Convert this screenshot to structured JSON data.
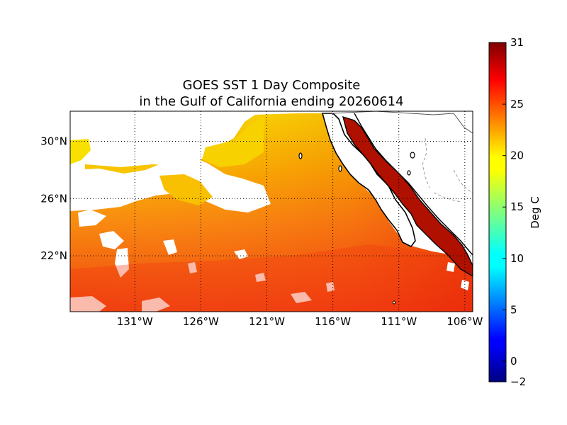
{
  "map": {
    "title_line1": "GOES SST 1 Day Composite",
    "title_line2": "in the Gulf of California ending 20260614",
    "lon_ticks": [
      {
        "lon": -131,
        "label": "131°W"
      },
      {
        "lon": -126,
        "label": "126°W"
      },
      {
        "lon": -121,
        "label": "121°W"
      },
      {
        "lon": -116,
        "label": "116°W"
      },
      {
        "lon": -111,
        "label": "111°W"
      },
      {
        "lon": -106,
        "label": "106°W"
      }
    ],
    "lat_ticks": [
      {
        "lat": 30,
        "label": "30°N"
      },
      {
        "lat": 26,
        "label": "26°N"
      },
      {
        "lat": 22,
        "label": "22°N"
      }
    ],
    "extent": {
      "lon_min": -135.9,
      "lon_max": -105.4,
      "lat_min": 18.1,
      "lat_max": 32.1
    },
    "grid": true
  },
  "colorbar": {
    "label": "Deg C",
    "min": -2,
    "max": 31,
    "ticks": [
      {
        "value": 31,
        "label": "31"
      },
      {
        "value": 25,
        "label": "25"
      },
      {
        "value": 20,
        "label": "20"
      },
      {
        "value": 15,
        "label": "15"
      },
      {
        "value": 10,
        "label": "10"
      },
      {
        "value": 5,
        "label": "5"
      },
      {
        "value": 0,
        "label": "0"
      },
      {
        "value": -2,
        "label": "−2"
      }
    ],
    "colormap": "jet"
  }
}
